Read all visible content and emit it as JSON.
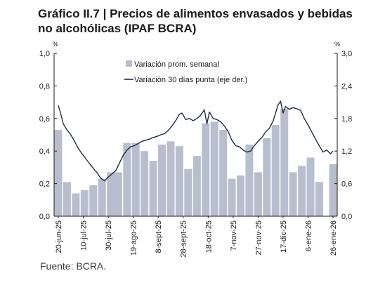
{
  "chart_data": {
    "type": "bar+line",
    "title": "Gráfico II.7 | Precios de alimentos envasados y bebidas no alcohólicas (IPAF BCRA)",
    "title_lines": [
      "Gráfico II.7 | Precios de alimentos envasados y bebidas",
      "no alcohólicas (IPAF BCRA)"
    ],
    "y_left": {
      "unit": "%",
      "min": 0,
      "max": 1.0,
      "ticks": [
        "0,0",
        "0,2",
        "0,4",
        "0,6",
        "0,8",
        "1,0"
      ]
    },
    "y_right": {
      "unit": "%",
      "min": 0,
      "max": 3.0,
      "ticks": [
        "0,0",
        "0,6",
        "1,2",
        "1,8",
        "2,4",
        "3,0"
      ]
    },
    "x_tick_labels": [
      "20-jun-25",
      "10-jul-25",
      "30-jul-25",
      "19-ago-25",
      "8-sept-25",
      "28-sept-25",
      "18-oct-25",
      "7-nov-25",
      "27-nov-25",
      "17-dic-25",
      "6-ene-26",
      "26-ene-26"
    ],
    "x_start": "2025-06-20",
    "x_end": "2026-01-26",
    "legend_position": "top-center",
    "grid": false,
    "series": [
      {
        "name": "Variación prom. semanal",
        "type": "bar",
        "axis": "left",
        "color": "#b7bfcf",
        "points": [
          [
            "2025-06-20",
            0.53
          ],
          [
            "2025-06-27",
            0.21
          ],
          [
            "2025-07-04",
            0.14
          ],
          [
            "2025-07-11",
            0.16
          ],
          [
            "2025-07-18",
            0.19
          ],
          [
            "2025-07-25",
            0.23
          ],
          [
            "2025-08-01",
            0.27
          ],
          [
            "2025-08-07",
            0.27
          ],
          [
            "2025-08-14",
            0.45
          ],
          [
            "2025-08-21",
            0.45
          ],
          [
            "2025-08-28",
            0.4
          ],
          [
            "2025-09-04",
            0.34
          ],
          [
            "2025-09-11",
            0.44
          ],
          [
            "2025-09-18",
            0.46
          ],
          [
            "2025-09-25",
            0.43
          ],
          [
            "2025-10-02",
            0.29
          ],
          [
            "2025-10-09",
            0.37
          ],
          [
            "2025-10-16",
            0.57
          ],
          [
            "2025-10-23",
            0.58
          ],
          [
            "2025-10-30",
            0.53
          ],
          [
            "2025-11-06",
            0.23
          ],
          [
            "2025-11-13",
            0.25
          ],
          [
            "2025-11-20",
            0.44
          ],
          [
            "2025-11-27",
            0.27
          ],
          [
            "2025-12-04",
            0.48
          ],
          [
            "2025-12-11",
            0.56
          ],
          [
            "2025-12-18",
            0.66
          ],
          [
            "2025-12-25",
            0.27
          ],
          [
            "2026-01-01",
            0.31
          ],
          [
            "2026-01-08",
            0.36
          ],
          [
            "2026-01-15",
            0.21
          ],
          [
            "2026-01-26",
            0.32
          ]
        ]
      },
      {
        "name": "Variación 30 días punta (eje der.)",
        "type": "line",
        "axis": "right",
        "color": "#1f2a44",
        "points": [
          [
            "2025-06-20",
            2.04
          ],
          [
            "2025-06-22",
            1.88
          ],
          [
            "2025-06-24",
            1.7
          ],
          [
            "2025-06-27",
            1.59
          ],
          [
            "2025-06-30",
            1.5
          ],
          [
            "2025-07-03",
            1.38
          ],
          [
            "2025-07-06",
            1.25
          ],
          [
            "2025-07-09",
            1.15
          ],
          [
            "2025-07-12",
            1.06
          ],
          [
            "2025-07-15",
            0.97
          ],
          [
            "2025-07-18",
            0.88
          ],
          [
            "2025-07-21",
            0.8
          ],
          [
            "2025-07-24",
            0.7
          ],
          [
            "2025-07-27",
            0.65
          ],
          [
            "2025-07-30",
            0.72
          ],
          [
            "2025-08-02",
            0.78
          ],
          [
            "2025-08-05",
            0.84
          ],
          [
            "2025-08-08",
            0.98
          ],
          [
            "2025-08-11",
            1.12
          ],
          [
            "2025-08-14",
            1.22
          ],
          [
            "2025-08-17",
            1.28
          ],
          [
            "2025-08-20",
            1.3
          ],
          [
            "2025-08-23",
            1.34
          ],
          [
            "2025-08-26",
            1.38
          ],
          [
            "2025-08-29",
            1.4
          ],
          [
            "2025-09-01",
            1.42
          ],
          [
            "2025-09-04",
            1.45
          ],
          [
            "2025-09-07",
            1.47
          ],
          [
            "2025-09-10",
            1.5
          ],
          [
            "2025-09-13",
            1.52
          ],
          [
            "2025-09-16",
            1.58
          ],
          [
            "2025-09-19",
            1.66
          ],
          [
            "2025-09-22",
            1.76
          ],
          [
            "2025-09-25",
            1.88
          ],
          [
            "2025-09-27",
            1.9
          ],
          [
            "2025-09-30",
            1.78
          ],
          [
            "2025-10-03",
            1.8
          ],
          [
            "2025-10-06",
            1.76
          ],
          [
            "2025-10-09",
            1.8
          ],
          [
            "2025-10-12",
            1.86
          ],
          [
            "2025-10-15",
            1.96
          ],
          [
            "2025-10-17",
            1.7
          ],
          [
            "2025-10-19",
            1.92
          ],
          [
            "2025-10-22",
            1.8
          ],
          [
            "2025-10-25",
            1.78
          ],
          [
            "2025-10-28",
            1.74
          ],
          [
            "2025-10-31",
            1.66
          ],
          [
            "2025-11-03",
            1.56
          ],
          [
            "2025-11-06",
            1.4
          ],
          [
            "2025-11-09",
            1.3
          ],
          [
            "2025-11-12",
            1.28
          ],
          [
            "2025-11-15",
            1.22
          ],
          [
            "2025-11-18",
            1.18
          ],
          [
            "2025-11-21",
            1.2
          ],
          [
            "2025-11-24",
            1.3
          ],
          [
            "2025-11-27",
            1.38
          ],
          [
            "2025-11-30",
            1.45
          ],
          [
            "2025-12-03",
            1.55
          ],
          [
            "2025-12-06",
            1.62
          ],
          [
            "2025-12-09",
            1.75
          ],
          [
            "2025-12-11",
            1.9
          ],
          [
            "2025-12-13",
            2.05
          ],
          [
            "2025-12-15",
            2.12
          ],
          [
            "2025-12-17",
            1.9
          ],
          [
            "2025-12-19",
            2.02
          ],
          [
            "2025-12-22",
            1.97
          ],
          [
            "2025-12-25",
            2.0
          ],
          [
            "2025-12-28",
            1.98
          ],
          [
            "2025-12-31",
            1.95
          ],
          [
            "2026-01-03",
            1.8
          ],
          [
            "2026-01-06",
            1.68
          ],
          [
            "2026-01-09",
            1.55
          ],
          [
            "2026-01-12",
            1.42
          ],
          [
            "2026-01-15",
            1.3
          ],
          [
            "2026-01-18",
            1.18
          ],
          [
            "2026-01-21",
            1.22
          ],
          [
            "2026-01-24",
            1.15
          ],
          [
            "2026-01-26",
            1.2
          ]
        ]
      }
    ]
  },
  "source": "Fuente: BCRA."
}
